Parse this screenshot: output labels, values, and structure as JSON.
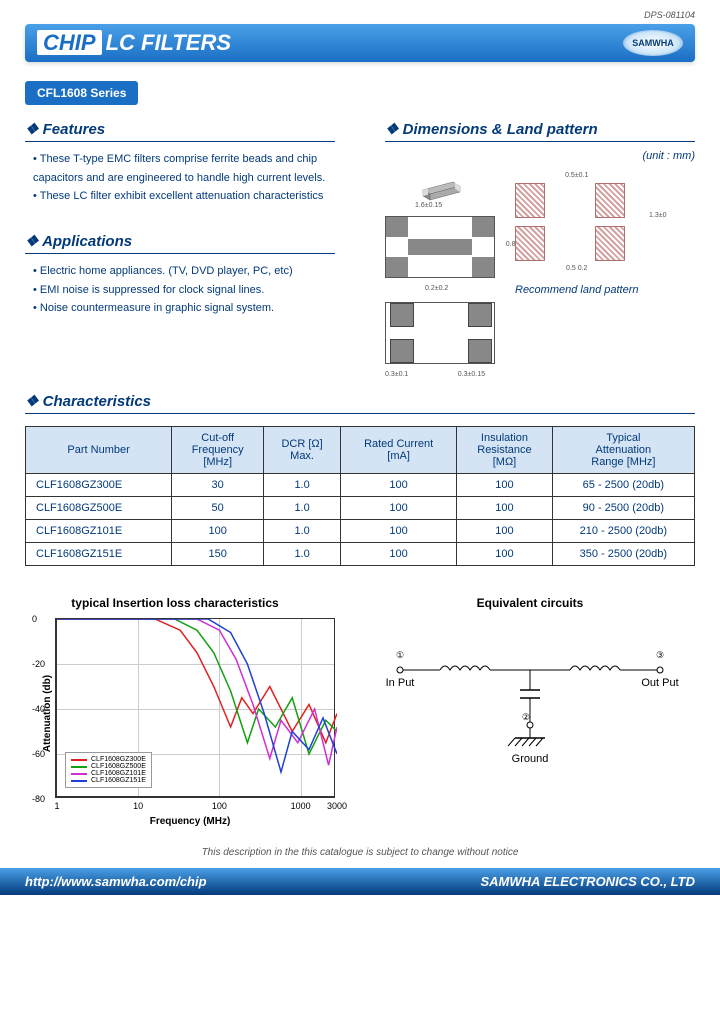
{
  "doc_id": "DPS-081104",
  "title": {
    "chip": "CHIP",
    "rest": "LC FILTERS"
  },
  "brand": "SAMWHA",
  "series_badge": "CFL1608 Series",
  "sections": {
    "features_title": "Features",
    "features": [
      "These T-type EMC filters comprise ferrite beads and chip capacitors and are engineered to handle high current levels.",
      "These  LC filter  exhibit excellent attenuation characteristics"
    ],
    "applications_title": "Applications",
    "applications": [
      "Electric home appliances. (TV, DVD player, PC, etc)",
      "EMI noise is suppressed for clock signal lines.",
      "Noise countermeasure in graphic signal system."
    ],
    "dimensions_title": "Dimensions & Land pattern",
    "unit": "(unit : mm)",
    "dim_top_w": "1.6±0.15",
    "dim_top_h": "0.8±0.15",
    "dim_top_bot": "0.2±0.2",
    "dim_bot_left": "0.3±0.1",
    "dim_bot_right": "0.3±0.15",
    "land_top": "0.5±0.1",
    "land_right": "1.3±0",
    "land_bot": "0.5  0.2",
    "land_caption": "Recommend land pattern",
    "characteristics_title": "Characteristics",
    "table_headers": [
      "Part Number",
      "Cut-off\nFrequency\n[MHz]",
      "DCR [Ω]\nMax.",
      "Rated Current\n[mA]",
      "Insulation\nResistance\n[MΩ]",
      "Typical\nAttenuation\nRange [MHz]"
    ],
    "table_rows": [
      [
        "CLF1608GZ300E",
        "30",
        "1.0",
        "100",
        "100",
        "65 - 2500 (20db)"
      ],
      [
        "CLF1608GZ500E",
        "50",
        "1.0",
        "100",
        "100",
        "90 - 2500 (20db)"
      ],
      [
        "CLF1608GZ101E",
        "100",
        "1.0",
        "100",
        "100",
        "210 - 2500 (20db)"
      ],
      [
        "CLF1608GZ151E",
        "150",
        "1.0",
        "100",
        "100",
        "350 - 2500 (20db)"
      ]
    ]
  },
  "chart": {
    "title": "typical Insertion loss characteristics",
    "ylabel": "Attenuation (db)",
    "xlabel": "Frequency (MHz)",
    "ylim": [
      -80,
      0
    ],
    "ytick_step": 20,
    "yticks": [
      "0",
      "-20",
      "-40",
      "-60",
      "-80"
    ],
    "xticks": [
      "1",
      "10",
      "100",
      "1000",
      "3000"
    ],
    "xtick_positions": [
      0,
      0.29,
      0.58,
      0.87,
      1.0
    ],
    "grid_color": "#cccccc",
    "background_color": "#ffffff",
    "series": [
      {
        "label": "CLF1608GZ300E",
        "color": "#e02020",
        "points": [
          [
            0,
            0
          ],
          [
            0.35,
            0
          ],
          [
            0.44,
            -5
          ],
          [
            0.5,
            -15
          ],
          [
            0.56,
            -30
          ],
          [
            0.62,
            -48
          ],
          [
            0.66,
            -35
          ],
          [
            0.7,
            -42
          ],
          [
            0.76,
            -30
          ],
          [
            0.84,
            -50
          ],
          [
            0.9,
            -38
          ],
          [
            0.96,
            -55
          ],
          [
            1.0,
            -42
          ]
        ]
      },
      {
        "label": "CLF1608GZ500E",
        "color": "#10a010",
        "points": [
          [
            0,
            0
          ],
          [
            0.42,
            0
          ],
          [
            0.5,
            -5
          ],
          [
            0.56,
            -15
          ],
          [
            0.62,
            -32
          ],
          [
            0.68,
            -55
          ],
          [
            0.72,
            -40
          ],
          [
            0.78,
            -48
          ],
          [
            0.84,
            -35
          ],
          [
            0.9,
            -60
          ],
          [
            0.96,
            -45
          ],
          [
            1.0,
            -50
          ]
        ]
      },
      {
        "label": "CLF1608GZ101E",
        "color": "#d030d0",
        "points": [
          [
            0,
            0
          ],
          [
            0.5,
            0
          ],
          [
            0.58,
            -5
          ],
          [
            0.64,
            -18
          ],
          [
            0.7,
            -38
          ],
          [
            0.76,
            -62
          ],
          [
            0.8,
            -45
          ],
          [
            0.86,
            -55
          ],
          [
            0.92,
            -40
          ],
          [
            0.97,
            -65
          ],
          [
            1.0,
            -48
          ]
        ]
      },
      {
        "label": "CLF1608GZ151E",
        "color": "#2040d0",
        "points": [
          [
            0,
            0
          ],
          [
            0.54,
            0
          ],
          [
            0.62,
            -6
          ],
          [
            0.68,
            -20
          ],
          [
            0.74,
            -42
          ],
          [
            0.8,
            -68
          ],
          [
            0.84,
            -50
          ],
          [
            0.9,
            -58
          ],
          [
            0.95,
            -44
          ],
          [
            1.0,
            -60
          ]
        ]
      }
    ]
  },
  "circuit": {
    "title": "Equivalent circuits",
    "input": "In Put",
    "output": "Out Put",
    "ground": "Ground",
    "node1": "①",
    "node2": "②",
    "node3": "③"
  },
  "disclaimer": "This description in the this catalogue is subject to change without notice",
  "footer": {
    "url": "http://www.samwha.com/chip",
    "company": "SAMWHA ELECTRONICS CO., LTD"
  }
}
